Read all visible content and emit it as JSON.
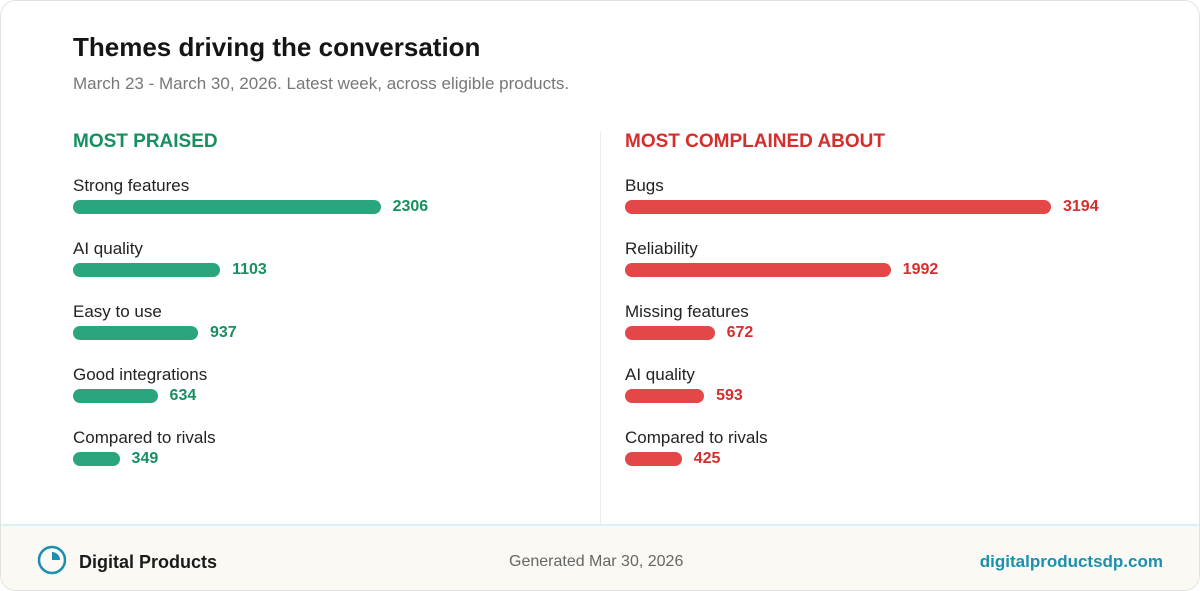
{
  "header": {
    "title": "Themes driving the conversation",
    "subtitle": "March 23 - March 30, 2026. Latest week, across eligible products."
  },
  "chart_data": [
    {
      "type": "bar",
      "title": "MOST PRAISED",
      "color": "#2aa57e",
      "label_color": "#16905f",
      "categories": [
        "Strong features",
        "AI quality",
        "Easy to use",
        "Good integrations",
        "Compared to rivals"
      ],
      "values": [
        2306,
        1103,
        937,
        634,
        349
      ]
    },
    {
      "type": "bar",
      "title": "MOST COMPLAINED ABOUT",
      "color": "#e34747",
      "label_color": "#d62d2d",
      "categories": [
        "Bugs",
        "Reliability",
        "Missing features",
        "AI quality",
        "Compared to rivals"
      ],
      "values": [
        3194,
        1992,
        672,
        593,
        425
      ]
    }
  ],
  "footer": {
    "brand": "Digital Products",
    "generated": "Generated Mar 30, 2026",
    "url": "digitalproductsdp.com"
  }
}
